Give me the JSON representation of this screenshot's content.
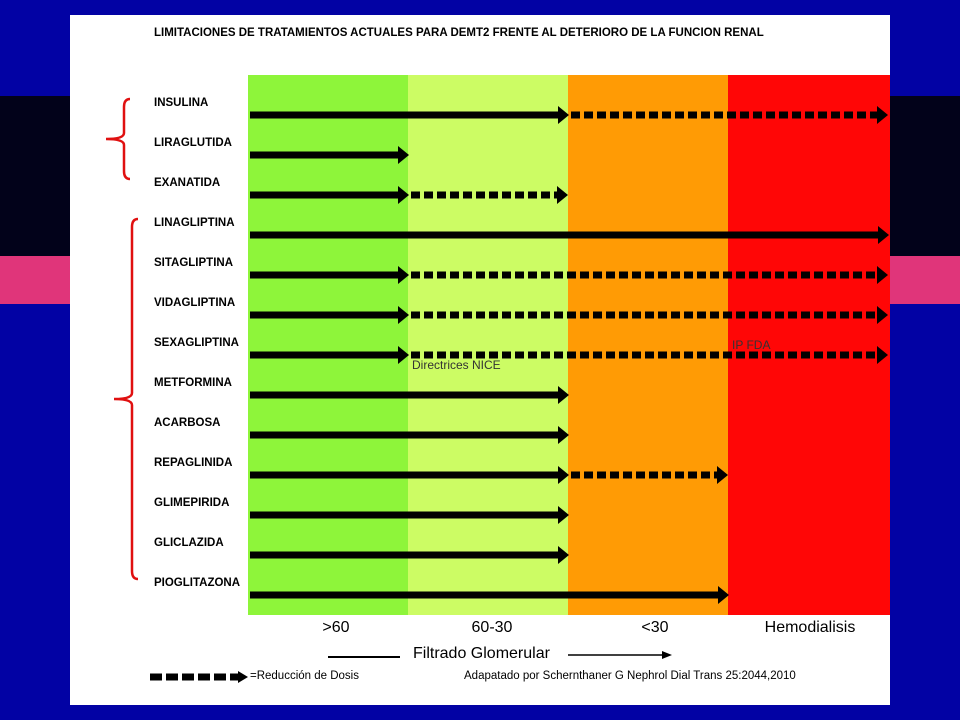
{
  "title": "LIMITACIONES DE TRATAMIENTOS ACTUALES PARA DEMT2 FRENTE AL DETERIORO DE LA FUNCION RENAL",
  "zones": [
    {
      "label": ">60",
      "color": "#8ef53a"
    },
    {
      "label": "60-30",
      "color": "#ccfc64"
    },
    {
      "label": "<30",
      "color": "#ff9b05"
    },
    {
      "label": "Hemodialisis",
      "color": "#ff0606"
    }
  ],
  "axis_title": "Filtrado Glomerular",
  "drugs": [
    {
      "name": "INSULINA",
      "solid_to": 2,
      "dashed_to": 4
    },
    {
      "name": "LIRAGLUTIDA",
      "solid_to": 1,
      "dashed_to": null
    },
    {
      "name": "EXANATIDA",
      "solid_to": 1,
      "dashed_to": 2
    },
    {
      "name": "LINAGLIPTINA",
      "solid_to": 4,
      "dashed_to": null
    },
    {
      "name": "SITAGLIPTINA",
      "solid_to": 1,
      "dashed_to": 4
    },
    {
      "name": "VIDAGLIPTINA",
      "solid_to": 1,
      "dashed_to": 4
    },
    {
      "name": "SEXAGLIPTINA",
      "solid_to": 1,
      "dashed_to": 4
    },
    {
      "name": "METFORMINA",
      "solid_to": 2,
      "dashed_to": null
    },
    {
      "name": "ACARBOSA",
      "solid_to": 2,
      "dashed_to": null
    },
    {
      "name": "REPAGLINIDA",
      "solid_to": 2,
      "dashed_to": 3
    },
    {
      "name": "GLIMEPIRIDA",
      "solid_to": 2,
      "dashed_to": null
    },
    {
      "name": "GLICLAZIDA",
      "solid_to": 2,
      "dashed_to": null
    },
    {
      "name": "PIOGLITAZONA",
      "solid_to": 3,
      "dashed_to": null
    }
  ],
  "groups": [
    {
      "first": 0,
      "last": 2
    },
    {
      "first": 3,
      "last": 12
    }
  ],
  "annotations": {
    "nice": "Directrices NICE",
    "fda": "IP FDA"
  },
  "legend": {
    "text": "=Reducción de Dosis"
  },
  "source": "Adapatado por Schernthaner G Nephrol Dial Trans 25:2044,2010"
}
